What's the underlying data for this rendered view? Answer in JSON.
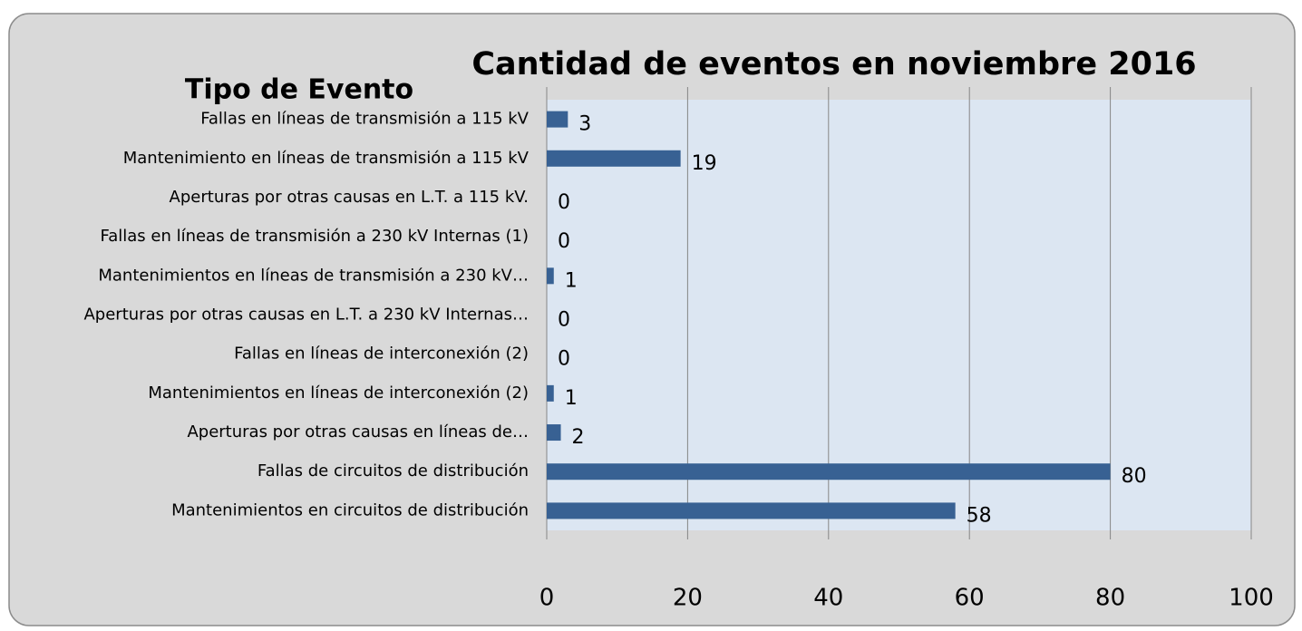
{
  "chart_data": {
    "type": "barh",
    "title": "Cantidad de eventos en noviembre 2016",
    "y_label": "Tipo de Evento",
    "categories": [
      "Fallas en líneas de transmisión a 115 kV",
      "Mantenimiento en líneas de transmisión a 115 kV",
      "Aperturas por otras causas en L.T. a 115 kV.",
      "Fallas en líneas de transmisión a 230 kV Internas (1)",
      "Mantenimientos en líneas de transmisión a 230 kV…",
      "Aperturas por otras causas en L.T. a 230 kV Internas…",
      "Fallas en líneas de interconexión (2)",
      "Mantenimientos en líneas de interconexión (2)",
      "Aperturas por otras causas en líneas de…",
      "Fallas de circuitos de distribución",
      "Mantenimientos en circuitos de distribución"
    ],
    "values": [
      3,
      19,
      0,
      0,
      1,
      0,
      0,
      1,
      2,
      80,
      58
    ],
    "color": "#386193",
    "xlim": [
      0,
      100
    ],
    "xticks": [
      0,
      20,
      40,
      60,
      80,
      100
    ],
    "grid": true
  }
}
